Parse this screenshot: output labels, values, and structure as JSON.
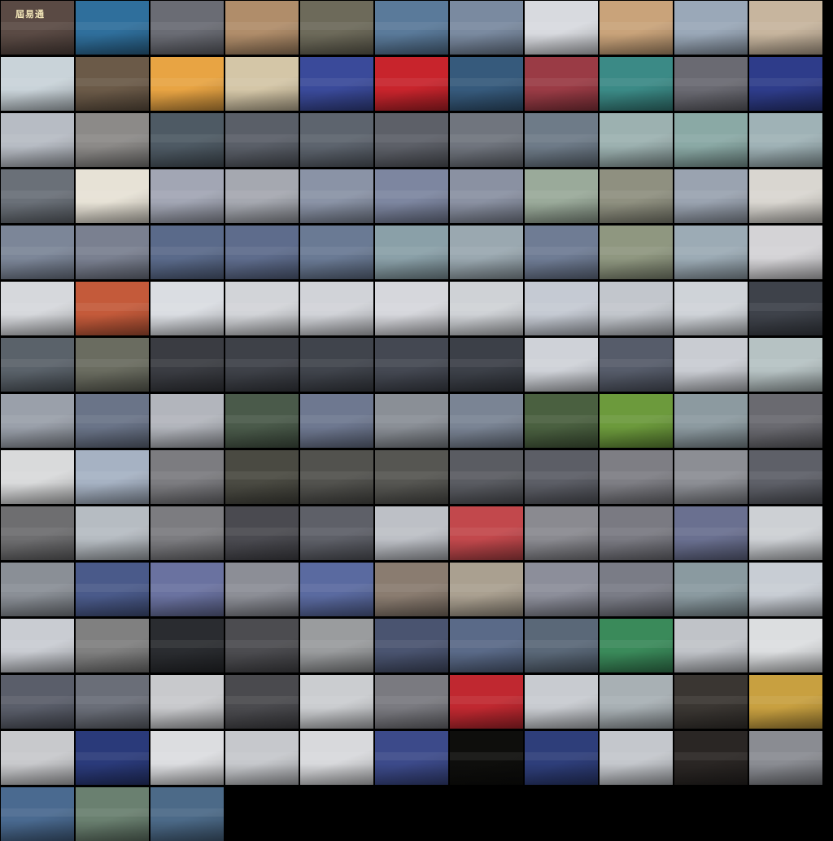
{
  "gallery": {
    "logo_text": "屆易通",
    "rows": [
      {
        "count": 11,
        "colors": [
          "#5a4a44",
          "#2f6f9c",
          "#6a6c74",
          "#b08d6a",
          "#6d6a5a",
          "#5a7a9a",
          "#7a8aa0",
          "#d8dadf",
          "#c9a37a",
          "#9aa8b8",
          "#c7b59e"
        ]
      },
      {
        "count": 11,
        "colors": [
          "#c9d3d9",
          "#6b5a48",
          "#e8a443",
          "#d4c6a7",
          "#3a4a9a",
          "#c8242c",
          "#365a7c",
          "#9a3b45",
          "#3b8a86",
          "#6a6a72",
          "#2e3c8a"
        ]
      },
      {
        "count": 11,
        "colors": [
          "#b7bcc4",
          "#8c8a88",
          "#4e5a64",
          "#5a5f68",
          "#5d646e",
          "#5d6068",
          "#70757e",
          "#6e7b88",
          "#9cb1b0",
          "#8aa9a5",
          "#9fb2b6"
        ]
      },
      {
        "count": 11,
        "colors": [
          "#6a7078",
          "#e7e2d6",
          "#a2a6b4",
          "#a5a8b0",
          "#8a93a6",
          "#7d86a0",
          "#8a91a2",
          "#9aaa9a",
          "#8f9080",
          "#9aa3b0",
          "#d9d6d0"
        ]
      },
      {
        "count": 11,
        "colors": [
          "#7c8698",
          "#7a8090",
          "#5a6a8a",
          "#5e6c8c",
          "#6a7a94",
          "#8aa0a8",
          "#9aa8b0",
          "#6f7c94",
          "#8f9780",
          "#9cabb5",
          "#d4d3d6"
        ]
      },
      {
        "count": 11,
        "colors": [
          "#d6d8dc",
          "#c45a3a",
          "#dadde2",
          "#d2d4d8",
          "#d1d3d8",
          "#d6d7dc",
          "#cfd2d6",
          "#c5cad3",
          "#c2c6cc",
          "#cfd3d8",
          "#3e424a"
        ]
      },
      {
        "count": 11,
        "colors": [
          "#5a626a",
          "#6a6c60",
          "#3a3c42",
          "#3e4148",
          "#40444c",
          "#444852",
          "#3c4048",
          "#cfd2d8",
          "#565c6a",
          "#c9ccd2",
          "#b6c2c3"
        ]
      },
      {
        "count": 11,
        "colors": [
          "#9aa0aa",
          "#6a7488",
          "#b2b5bc",
          "#4a5a4a",
          "#6e7890",
          "#8a8f96",
          "#7a8494",
          "#4a6040",
          "#6c9a3c",
          "#8c9aa0",
          "#6a6a70"
        ]
      },
      {
        "count": 11,
        "colors": [
          "#d9dadb",
          "#a6b2c3",
          "#7c7c80",
          "#4a4a42",
          "#52524e",
          "#565652",
          "#5a5c62",
          "#5c5e66",
          "#7e7e84",
          "#8c8e94",
          "#5e6068"
        ]
      },
      {
        "count": 11,
        "colors": [
          "#6e6e70",
          "#b6bcc2",
          "#7c7c80",
          "#4a4a50",
          "#5e6068",
          "#bdc0c6",
          "#c2484c",
          "#8a8a90",
          "#7a7a82",
          "#6a7090",
          "#cdd0d4"
        ]
      },
      {
        "count": 11,
        "colors": [
          "#8a8f96",
          "#4a5a8a",
          "#6a72a0",
          "#8c8e96",
          "#5a6aa0",
          "#8a7c70",
          "#aaa090",
          "#8c8e9a",
          "#7a7c86",
          "#8a9aa0",
          "#c8cdd4"
        ]
      },
      {
        "count": 11,
        "colors": [
          "#c9ccd2",
          "#808080",
          "#2a2c30",
          "#4c4c50",
          "#9a9c9e",
          "#4a5470",
          "#5a6a88",
          "#5a6878",
          "#3a8a5a",
          "#c0c3c8",
          "#dcdee0"
        ]
      },
      {
        "count": 11,
        "colors": [
          "#5a5e6a",
          "#6a6e78",
          "#c8c9cc",
          "#4a4a4e",
          "#cbcdd0",
          "#7a7a80",
          "#c02830",
          "#c8cbd0",
          "#a8b0b4",
          "#3a3632",
          "#c8a040"
        ]
      },
      {
        "count": 11,
        "colors": [
          "#c8c9cc",
          "#2a3a7a",
          "#dcdde0",
          "#c6c8cc",
          "#d8d9dc",
          "#3c4a8a",
          "#0e0e0c",
          "#2e3e7a",
          "#c4c7cc",
          "#2a2624",
          "#8a8c92"
        ]
      },
      {
        "count": 3,
        "colors": [
          "#4a6a90",
          "#6a8070",
          "#4c6a88"
        ]
      }
    ]
  }
}
